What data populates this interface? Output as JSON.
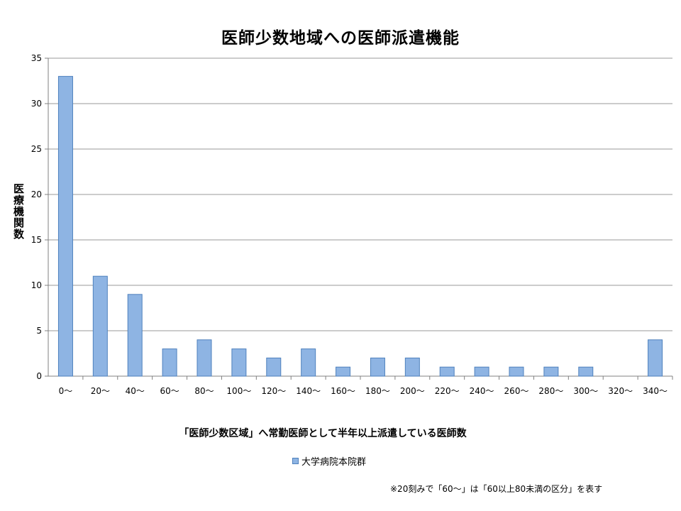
{
  "chart_data": {
    "type": "bar",
    "title": "医師少数地域への医師派遣機能",
    "ylabel": "医療機関数",
    "xlabel": "「医師少数区域」へ常勤医師として半年以上派遣している医師数",
    "categories": [
      "0～",
      "20～",
      "40～",
      "60～",
      "80～",
      "100～",
      "120～",
      "140～",
      "160～",
      "180～",
      "200～",
      "220～",
      "240～",
      "260～",
      "280～",
      "300～",
      "320～",
      "340～"
    ],
    "series": [
      {
        "name": "大学病院本院群",
        "values": [
          33,
          11,
          9,
          3,
          4,
          3,
          2,
          3,
          1,
          2,
          2,
          1,
          1,
          1,
          1,
          1,
          0,
          4
        ]
      }
    ],
    "ylim": [
      0,
      35
    ],
    "yticks": [
      0,
      5,
      10,
      15,
      20,
      25,
      30,
      35
    ],
    "grid": true,
    "legend_position": "bottom",
    "note": "※20刻みで「60～」は「60以上80未満の区分」を表す",
    "colors": {
      "bar_fill": "#8eb4e3",
      "bar_stroke": "#4f81bd",
      "grid": "#9a9a9a"
    }
  }
}
